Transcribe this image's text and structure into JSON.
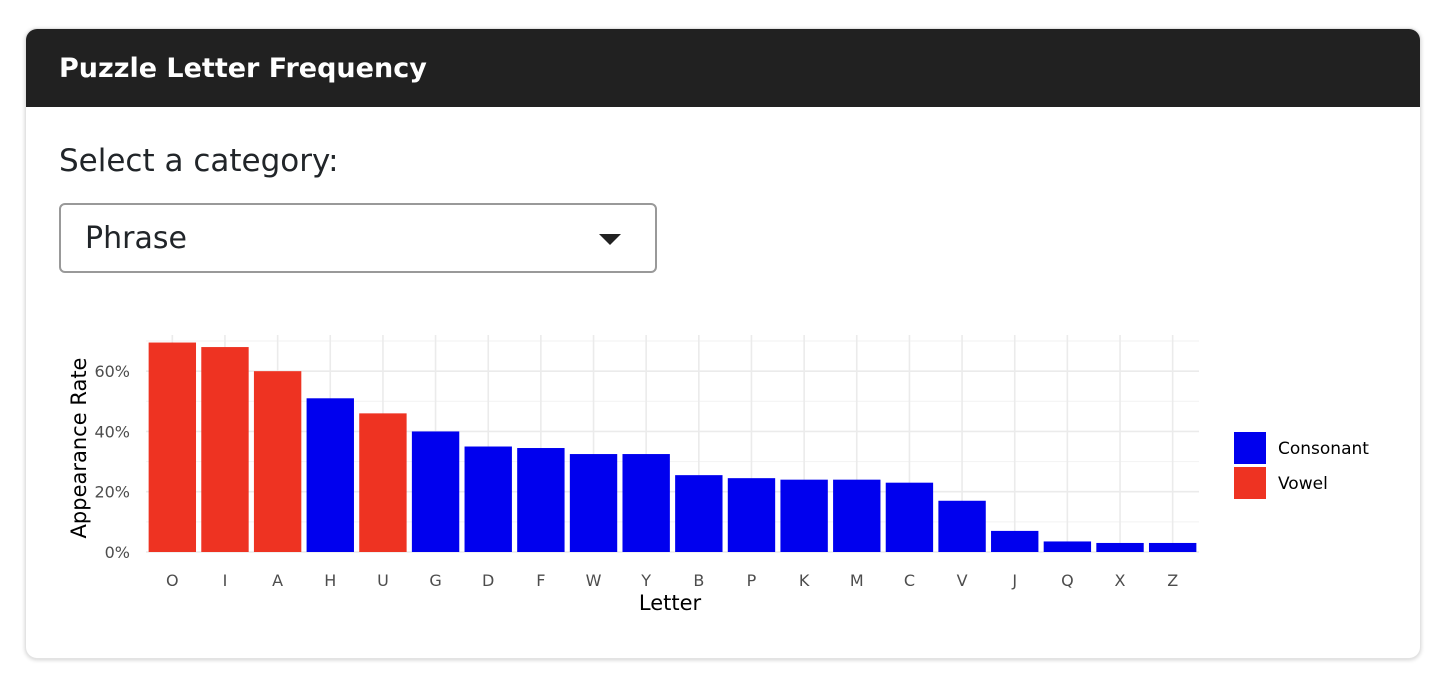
{
  "card": {
    "title": "Puzzle Letter Frequency"
  },
  "select": {
    "label": "Select a category:",
    "value": "Phrase"
  },
  "colors": {
    "consonant": "#0000EE",
    "vowel": "#EE3322",
    "header_bg": "#212121"
  },
  "chart_data": {
    "type": "bar",
    "categories": [
      "O",
      "I",
      "A",
      "H",
      "U",
      "G",
      "D",
      "F",
      "W",
      "Y",
      "B",
      "P",
      "K",
      "M",
      "C",
      "V",
      "J",
      "Q",
      "X",
      "Z"
    ],
    "values": [
      69.5,
      68,
      60,
      51,
      46,
      40,
      35,
      34.5,
      32.5,
      32.5,
      25.5,
      24.5,
      24,
      24,
      23,
      17,
      7,
      3.5,
      3,
      3
    ],
    "groups": [
      "Vowel",
      "Vowel",
      "Vowel",
      "Consonant",
      "Vowel",
      "Consonant",
      "Consonant",
      "Consonant",
      "Consonant",
      "Consonant",
      "Consonant",
      "Consonant",
      "Consonant",
      "Consonant",
      "Consonant",
      "Consonant",
      "Consonant",
      "Consonant",
      "Consonant",
      "Consonant"
    ],
    "xlabel": "Letter",
    "ylabel": "Appearance Rate",
    "ylim": [
      0,
      72
    ],
    "yticks": [
      0,
      20,
      40,
      60
    ],
    "ytick_labels": [
      "0%",
      "20%",
      "40%",
      "60%"
    ],
    "grid": true,
    "legend": {
      "position": "right",
      "entries": [
        {
          "label": "Consonant",
          "color": "#0000EE"
        },
        {
          "label": "Vowel",
          "color": "#EE3322"
        }
      ]
    }
  }
}
